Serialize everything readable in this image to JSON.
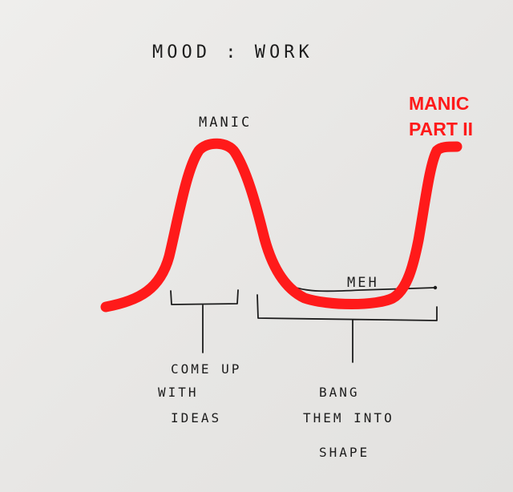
{
  "title": "MOOD : WORK",
  "labels": {
    "peak": "MANIC",
    "trough": "MEH",
    "phase1_line1": "COME UP",
    "phase1_line2": "WITH",
    "phase1_line3": "IDEAS",
    "phase2_line1": "BANG",
    "phase2_line2": "THEM INTO",
    "phase2_line3": "SHAPE"
  },
  "annotation": {
    "line1": "MANIC",
    "line2": "PART II",
    "color": "#ff1a1a"
  },
  "colors": {
    "paper": "#e9e8e6",
    "ink": "#1c1c1c",
    "marker": "#ff1a1a"
  }
}
